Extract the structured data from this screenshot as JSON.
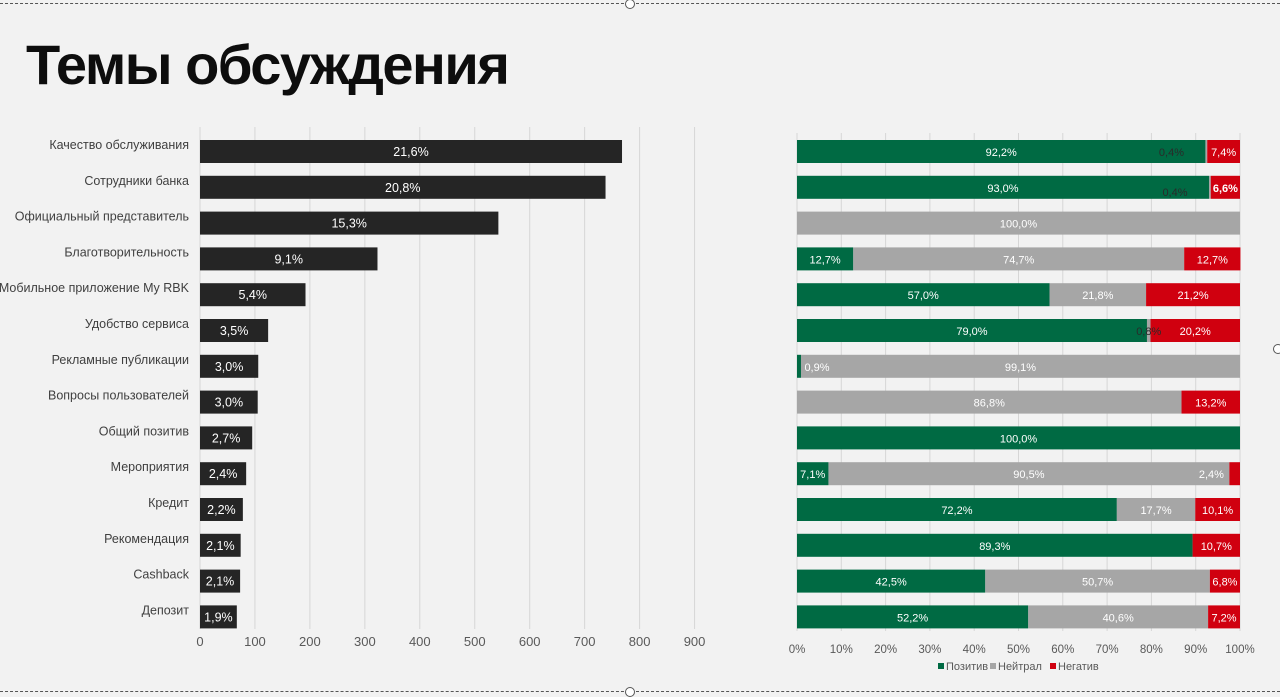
{
  "page": {
    "title": "Темы обсуждения"
  },
  "colors": {
    "bar": "#252525",
    "pozitiv": "#006a43",
    "neitral": "#a6a6a6",
    "negativ": "#d0000f",
    "grid": "#d6d6d6"
  },
  "chart_data": [
    {
      "type": "bar",
      "orientation": "horizontal",
      "categories": [
        "Качество обслуживания",
        "Сотрудники банка",
        "Официальный представитель",
        "Благотворительность",
        "Мобильное приложение My RBK",
        "Удобство сервиса",
        "Рекламные публикации",
        "Вопросы пользователей",
        "Общий позитив",
        "Мероприятия",
        "Кредит",
        "Рекомендация",
        "Cashback",
        "Депозит"
      ],
      "values": [
        768,
        738,
        543,
        323,
        192,
        124,
        106,
        105,
        95,
        84,
        78,
        74,
        73,
        67
      ],
      "data_labels": [
        "21,6%",
        "20,8%",
        "15,3%",
        "9,1%",
        "5,4%",
        "3,5%",
        "3,0%",
        "3,0%",
        "2,7%",
        "2,4%",
        "2,2%",
        "2,1%",
        "2,1%",
        "1,9%"
      ],
      "xlim": [
        0,
        900
      ],
      "x_ticks": [
        "0",
        "100",
        "200",
        "300",
        "400",
        "500",
        "600",
        "700",
        "800",
        "900"
      ],
      "grid": true
    },
    {
      "type": "bar",
      "orientation": "horizontal",
      "stacked": "percent",
      "series_names": [
        "Позитив",
        "Нейтрал",
        "Негатив"
      ],
      "rows": [
        {
          "values": [
            92.2,
            0.4,
            7.4
          ],
          "labels": [
            "92,2%",
            "0,4%",
            "7,4%"
          ]
        },
        {
          "values": [
            93.0,
            0.4,
            6.6
          ],
          "labels": [
            "93,0%",
            "0,4%",
            "6,6%"
          ]
        },
        {
          "values": [
            0,
            100.0,
            0
          ],
          "labels": [
            "",
            "100,0%",
            ""
          ]
        },
        {
          "values": [
            12.7,
            74.7,
            12.7
          ],
          "labels": [
            "12,7%",
            "74,7%",
            "12,7%"
          ]
        },
        {
          "values": [
            57.0,
            21.8,
            21.2
          ],
          "labels": [
            "57,0%",
            "21,8%",
            "21,2%"
          ]
        },
        {
          "values": [
            79.0,
            0.8,
            20.2
          ],
          "labels": [
            "79,0%",
            "0,8%",
            "20,2%"
          ]
        },
        {
          "values": [
            0.9,
            99.1,
            0
          ],
          "labels": [
            "0,9%",
            "99,1%",
            ""
          ]
        },
        {
          "values": [
            0,
            86.8,
            13.2
          ],
          "labels": [
            "",
            "86,8%",
            "13,2%"
          ]
        },
        {
          "values": [
            100.0,
            0,
            0
          ],
          "labels": [
            "100,0%",
            "",
            ""
          ]
        },
        {
          "values": [
            7.1,
            90.5,
            2.4
          ],
          "labels": [
            "7,1%",
            "90,5%",
            "2,4%"
          ]
        },
        {
          "values": [
            72.2,
            17.7,
            10.1
          ],
          "labels": [
            "72,2%",
            "17,7%",
            "10,1%"
          ]
        },
        {
          "values": [
            89.3,
            0,
            10.7
          ],
          "labels": [
            "89,3%",
            "",
            "10,7%"
          ]
        },
        {
          "values": [
            42.5,
            50.7,
            6.8
          ],
          "labels": [
            "42,5%",
            "50,7%",
            "6,8%"
          ]
        },
        {
          "values": [
            52.2,
            40.6,
            7.2
          ],
          "labels": [
            "52,2%",
            "40,6%",
            "7,2%"
          ]
        }
      ],
      "x_ticks": [
        "0%",
        "10%",
        "20%",
        "30%",
        "40%",
        "50%",
        "60%",
        "70%",
        "80%",
        "90%",
        "100%"
      ],
      "legend": {
        "placement": "bottom",
        "items": [
          "Позитив",
          "Нейтрал",
          "Негатив"
        ]
      },
      "grid": true
    }
  ]
}
